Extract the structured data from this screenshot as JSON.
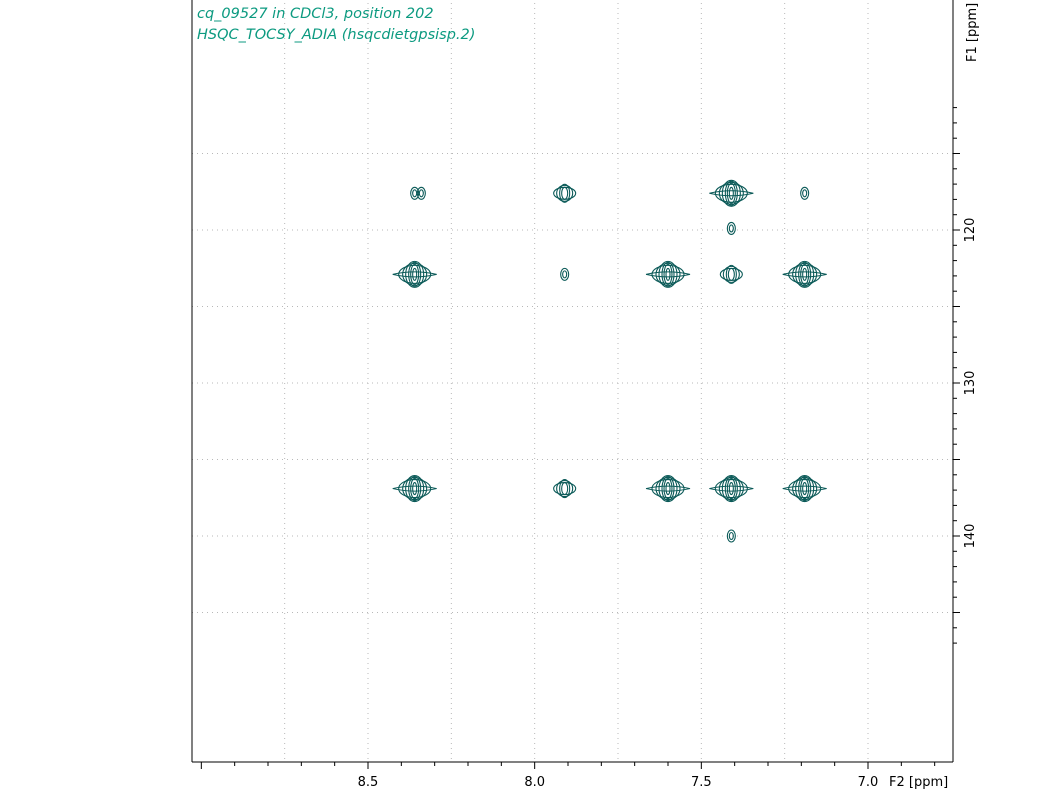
{
  "title": {
    "line1": "cq_09527 in CDCl3, position 202",
    "line2": "HSQC_TOCSY_ADIA (hsqcdietgpsisp.2)"
  },
  "colors": {
    "contour": "#0b5a58",
    "title": "#0c9a80",
    "grid": "#b8b8b8",
    "axis": "#000000"
  },
  "chart_data": {
    "type": "contour",
    "subtype": "2D NMR HSQC-TOCSY",
    "xlabel": "F2 [ppm]",
    "ylabel": "F1 [ppm]",
    "x_reversed": true,
    "xlim": [
      8.99,
      6.75
    ],
    "ylim": [
      111.5,
      147.5
    ],
    "x_ticks": [
      8.5,
      8.0,
      7.5,
      7.0
    ],
    "x_tick_labels": [
      "8.5",
      "8.0",
      "7.5",
      "7.0"
    ],
    "y_ticks": [
      120,
      130,
      140
    ],
    "y_tick_labels": [
      "120",
      "130",
      "140"
    ],
    "grid": true,
    "x_gridlines": [
      8.75,
      8.5,
      8.25,
      8.0,
      7.75,
      7.5,
      7.25,
      7.0
    ],
    "y_gridlines": [
      115,
      120,
      125,
      130,
      135,
      140,
      145
    ],
    "peaks": [
      {
        "x": 8.36,
        "y": 117.6,
        "intensity": "weak"
      },
      {
        "x": 8.34,
        "y": 117.6,
        "intensity": "weak"
      },
      {
        "x": 7.91,
        "y": 117.6,
        "intensity": "medium"
      },
      {
        "x": 7.41,
        "y": 117.6,
        "intensity": "strong"
      },
      {
        "x": 7.19,
        "y": 117.6,
        "intensity": "weak"
      },
      {
        "x": 7.41,
        "y": 119.9,
        "intensity": "weak"
      },
      {
        "x": 8.36,
        "y": 122.9,
        "intensity": "strong"
      },
      {
        "x": 7.91,
        "y": 122.9,
        "intensity": "weak"
      },
      {
        "x": 7.6,
        "y": 122.9,
        "intensity": "strong"
      },
      {
        "x": 7.41,
        "y": 122.9,
        "intensity": "medium"
      },
      {
        "x": 7.19,
        "y": 122.9,
        "intensity": "strong"
      },
      {
        "x": 8.36,
        "y": 136.9,
        "intensity": "strong"
      },
      {
        "x": 7.91,
        "y": 136.9,
        "intensity": "medium"
      },
      {
        "x": 7.6,
        "y": 136.9,
        "intensity": "strong"
      },
      {
        "x": 7.41,
        "y": 136.9,
        "intensity": "strong"
      },
      {
        "x": 7.19,
        "y": 136.9,
        "intensity": "strong"
      },
      {
        "x": 7.41,
        "y": 140.0,
        "intensity": "weak"
      }
    ]
  }
}
